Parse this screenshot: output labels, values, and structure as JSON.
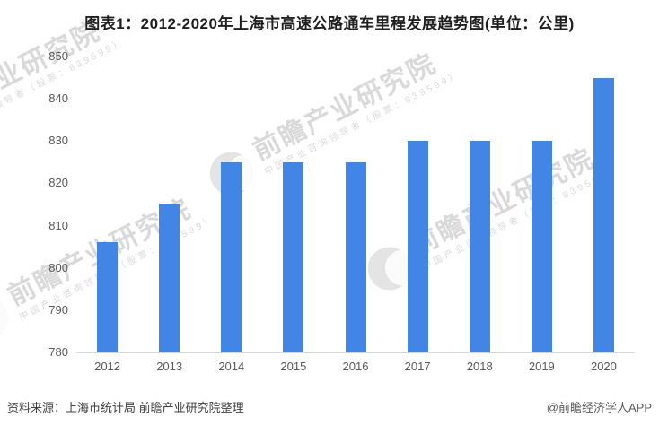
{
  "title": "图表1：2012-2020年上海市高速公路通车里程发展趋势图(单位：公里)",
  "chart_data": {
    "type": "bar",
    "title": "2012-2020年上海市高速公路通车里程发展趋势图",
    "unit": "公里",
    "categories": [
      "2012",
      "2013",
      "2014",
      "2015",
      "2016",
      "2017",
      "2018",
      "2019",
      "2020"
    ],
    "values": [
      806,
      815,
      825,
      825,
      825,
      830,
      830,
      830,
      845
    ],
    "xlabel": "",
    "ylabel": "",
    "ylim": [
      780,
      850
    ],
    "ytick_step": 10,
    "yticks": [
      780,
      790,
      800,
      810,
      820,
      830,
      840,
      850
    ],
    "grid": false,
    "legend": false
  },
  "watermark": {
    "line1": "前瞻产业研究院",
    "line2": "中国产业咨询领导者（股票：839599）"
  },
  "footer": {
    "source": "资料来源：上海市统计局 前瞻产业研究院整理",
    "credit": "@前瞻经济学人APP"
  },
  "colors": {
    "bar": "#4285E4",
    "axis_line": "#D6D6D6",
    "axis_label": "#595959",
    "title": "#1F1F1F",
    "footer": "#3F3F3F",
    "watermark": "rgba(130,130,130,0.30)"
  }
}
